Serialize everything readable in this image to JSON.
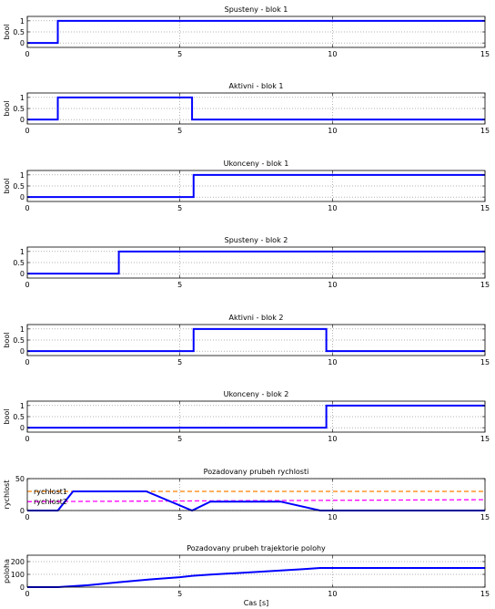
{
  "chart_data": [
    {
      "type": "line",
      "title": "Spusteny - blok 1",
      "xlabel": "",
      "ylabel": "bool",
      "xlim": [
        0,
        15
      ],
      "ylim": [
        -0.2,
        1.2
      ],
      "xticks": [
        0,
        5,
        10,
        15
      ],
      "yticks": [
        0,
        0.5,
        1
      ],
      "grid": true,
      "series": [
        {
          "color": "#0000ff",
          "x": [
            0,
            1,
            1,
            15
          ],
          "y": [
            0,
            0,
            1,
            1
          ]
        }
      ]
    },
    {
      "type": "line",
      "title": "Aktivni - blok 1",
      "xlabel": "",
      "ylabel": "bool",
      "xlim": [
        0,
        15
      ],
      "ylim": [
        -0.2,
        1.2
      ],
      "xticks": [
        0,
        5,
        10,
        15
      ],
      "yticks": [
        0,
        0.5,
        1
      ],
      "grid": true,
      "series": [
        {
          "color": "#0000ff",
          "x": [
            0,
            1,
            1,
            5.4,
            5.4,
            15
          ],
          "y": [
            0,
            0,
            1,
            1,
            0,
            0
          ]
        }
      ]
    },
    {
      "type": "line",
      "title": "Ukonceny - blok 1",
      "xlabel": "",
      "ylabel": "bool",
      "xlim": [
        0,
        15
      ],
      "ylim": [
        -0.2,
        1.2
      ],
      "xticks": [
        0,
        5,
        10,
        15
      ],
      "yticks": [
        0,
        0.5,
        1
      ],
      "grid": true,
      "series": [
        {
          "color": "#0000ff",
          "x": [
            0,
            5.45,
            5.45,
            15
          ],
          "y": [
            0,
            0,
            1,
            1
          ]
        }
      ]
    },
    {
      "type": "line",
      "title": "Spusteny - blok 2",
      "xlabel": "",
      "ylabel": "",
      "xlim": [
        0,
        15
      ],
      "ylim": [
        -0.2,
        1.2
      ],
      "xticks": [
        0,
        5,
        10,
        15
      ],
      "yticks": [
        0,
        0.5,
        1
      ],
      "grid": true,
      "series": [
        {
          "color": "#0000ff",
          "x": [
            0,
            3,
            3,
            15
          ],
          "y": [
            0,
            0,
            1,
            1
          ]
        }
      ]
    },
    {
      "type": "line",
      "title": "Aktivni - blok 2",
      "xlabel": "",
      "ylabel": "bool",
      "xlim": [
        0,
        15
      ],
      "ylim": [
        -0.2,
        1.2
      ],
      "xticks": [
        0,
        5,
        10,
        15
      ],
      "yticks": [
        0,
        0.5,
        1
      ],
      "grid": true,
      "series": [
        {
          "color": "#0000ff",
          "x": [
            0,
            5.45,
            5.45,
            9.8,
            9.8,
            15
          ],
          "y": [
            0,
            0,
            1,
            1,
            0,
            0
          ]
        }
      ]
    },
    {
      "type": "line",
      "title": "Ukonceny - blok 2",
      "xlabel": "",
      "ylabel": "bool",
      "xlim": [
        0,
        15
      ],
      "ylim": [
        -0.2,
        1.2
      ],
      "xticks": [
        0,
        5,
        10,
        15
      ],
      "yticks": [
        0,
        0.5,
        1
      ],
      "grid": true,
      "series": [
        {
          "color": "#0000ff",
          "x": [
            0,
            9.8,
            9.8,
            15
          ],
          "y": [
            0,
            0,
            1,
            1
          ]
        }
      ]
    },
    {
      "type": "line",
      "title": "Pozadovany prubeh rychlosti",
      "xlabel": "",
      "ylabel": "rychlost",
      "xlim": [
        0,
        15
      ],
      "ylim": [
        0,
        50
      ],
      "xticks": [
        0,
        5,
        10,
        15
      ],
      "yticks": [
        0,
        50
      ],
      "grid": true,
      "legend_position": "left",
      "series": [
        {
          "name": "rychlost1",
          "color": "#ff8000",
          "dash": true,
          "x": [
            0,
            15
          ],
          "y": [
            30,
            30
          ]
        },
        {
          "name": "rychlost2",
          "color": "#ff00ff",
          "dash": true,
          "x": [
            0,
            15
          ],
          "y": [
            14,
            17
          ]
        },
        {
          "color": "#0000ff",
          "x": [
            0,
            1,
            1.5,
            3.9,
            5.4,
            6,
            8.3,
            9.6,
            15
          ],
          "y": [
            0,
            0,
            30,
            30,
            0,
            14,
            14,
            0,
            0
          ]
        }
      ]
    },
    {
      "type": "line",
      "title": "Pozadovany prubeh trajektorie polohy",
      "xlabel": "Cas [s]",
      "ylabel": "poloha",
      "xlim": [
        0,
        15
      ],
      "ylim": [
        0,
        250
      ],
      "xticks": [
        0,
        5,
        10,
        15
      ],
      "yticks": [
        0,
        100,
        200
      ],
      "grid": true,
      "series": [
        {
          "color": "#0000ff",
          "x": [
            0,
            1,
            2,
            3,
            4,
            5,
            5.4,
            6,
            7,
            8,
            9,
            9.6,
            10,
            15
          ],
          "y": [
            0,
            0,
            15,
            38,
            60,
            78,
            88,
            98,
            112,
            126,
            140,
            150,
            150,
            150
          ]
        }
      ]
    }
  ]
}
